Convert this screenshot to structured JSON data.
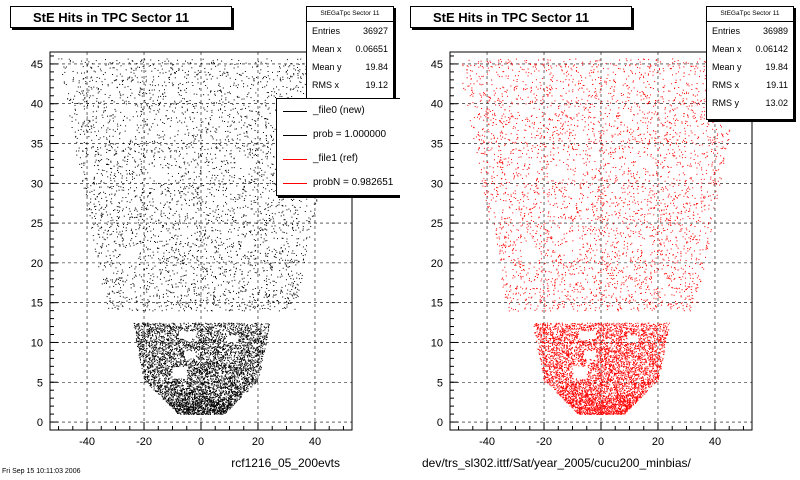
{
  "colors": {
    "new": "#000000",
    "ref": "#ff0000",
    "frame": "#000000"
  },
  "left": {
    "title": "StE Hits in TPC Sector 11",
    "stats": {
      "title": "StEGaTpc Sector 11",
      "rows": [
        {
          "label": "Entries",
          "value": "36927"
        },
        {
          "label": "Mean x",
          "value": "0.06651"
        },
        {
          "label": "Mean y",
          "value": "19.84"
        },
        {
          "label": "RMS x",
          "value": "19.12"
        }
      ]
    },
    "legend": [
      {
        "label": "_file0 (new)",
        "color": "#000000"
      },
      {
        "label": "prob = 1.000000",
        "color": "#000000"
      },
      {
        "label": "_file1 (ref)",
        "color": "#ff0000"
      },
      {
        "label": "probN = 0.982651",
        "color": "#ff0000"
      }
    ],
    "xlabel": "rcf1216_05_200evts",
    "footer": "Fri Sep 15 10:11:03 2006"
  },
  "right": {
    "title": "StE Hits in TPC Sector 11",
    "stats": {
      "title": "StEGaTpc Sector 11",
      "rows": [
        {
          "label": "Entries",
          "value": "36989"
        },
        {
          "label": "Mean x",
          "value": "0.06142"
        },
        {
          "label": "Mean y",
          "value": "19.84"
        },
        {
          "label": "RMS x",
          "value": "19.11"
        },
        {
          "label": "RMS y",
          "value": "13.02"
        }
      ]
    },
    "xlabel": "dev/trs_sl302.ittf/Sat/year_2005/cucu200_minbias/"
  },
  "chart_data": [
    {
      "type": "scatter",
      "title": "StE Hits in TPC Sector 11",
      "xlabel": "rcf1216_05_200evts",
      "ylabel": "",
      "xlim": [
        -53,
        53
      ],
      "ylim": [
        -1,
        46.5
      ],
      "xticks": [
        -40,
        -20,
        0,
        20,
        40
      ],
      "yticks": [
        0,
        5,
        10,
        15,
        20,
        25,
        30,
        35,
        40,
        45
      ],
      "grid": true,
      "legend": "upper-right",
      "series": [
        {
          "name": "_file0 (new)",
          "color": "#000000",
          "entries": 36927
        }
      ]
    },
    {
      "type": "scatter",
      "title": "StE Hits in TPC Sector 11",
      "xlabel": "dev/trs_sl302.ittf/Sat/year_2005/cucu200_minbias/",
      "ylabel": "",
      "xlim": [
        -53,
        53
      ],
      "ylim": [
        -1,
        46.5
      ],
      "xticks": [
        -40,
        -20,
        0,
        20,
        40
      ],
      "yticks": [
        0,
        5,
        10,
        15,
        20,
        25,
        30,
        35,
        40,
        45
      ],
      "grid": true,
      "series": [
        {
          "name": "_file1 (ref)",
          "color": "#ff0000",
          "entries": 36989
        }
      ]
    }
  ]
}
